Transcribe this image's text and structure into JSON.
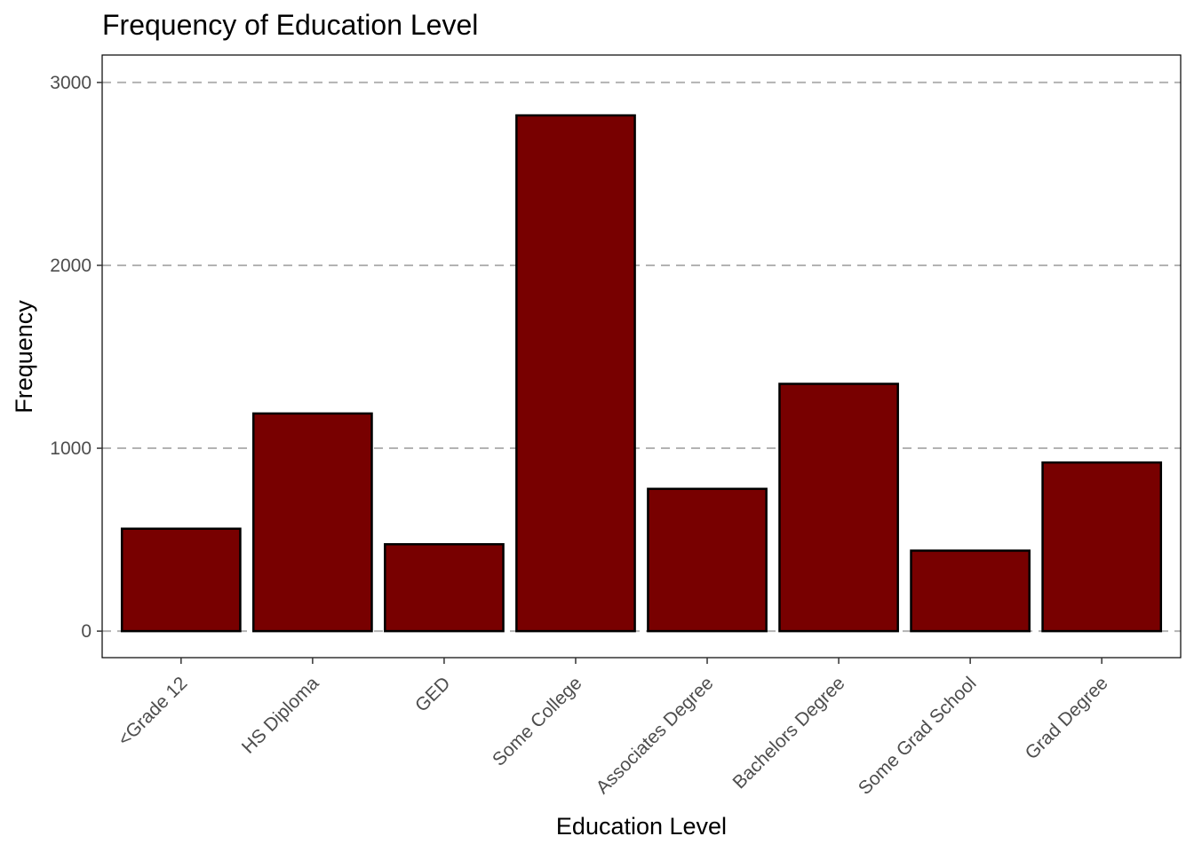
{
  "chart_data": {
    "type": "bar",
    "title": "Frequency of Education Level",
    "xlabel": "Education Level",
    "ylabel": "Frequency",
    "categories": [
      "<Grade 12",
      "HS Diploma",
      "GED",
      "Some College",
      "Associates Degree",
      "Bachelors Degree",
      "Some Grad School",
      "Grad Degree"
    ],
    "values": [
      560,
      1190,
      475,
      2820,
      778,
      1352,
      440,
      922
    ],
    "ylim": [
      -145,
      3150
    ],
    "yticks": [
      0,
      1000,
      2000,
      3000
    ],
    "ytick_labels": [
      "0",
      "1000",
      "2000",
      "3000"
    ],
    "grid": "major y, dashed",
    "legend": "none",
    "colors": {
      "bar_fill": "#780000",
      "bar_stroke": "#000000",
      "grid": "#b3b3b3",
      "panel_border": "#000000"
    }
  }
}
